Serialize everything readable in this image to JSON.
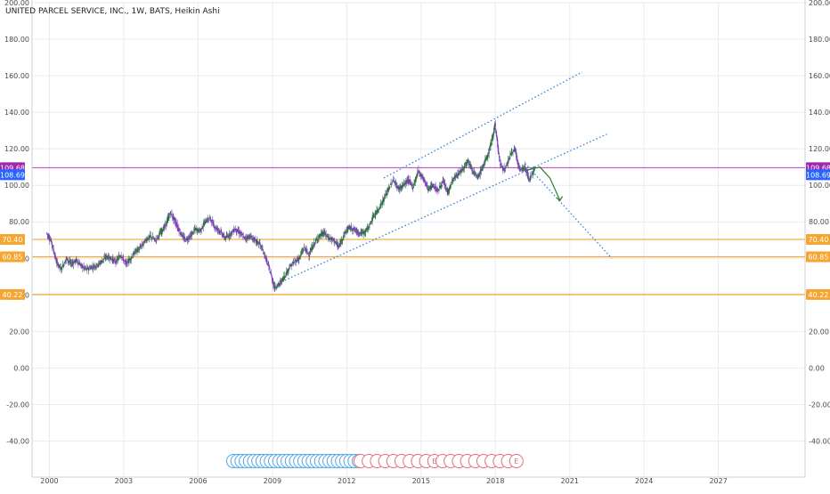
{
  "header": {
    "title": "UNITED PARCEL SERVICE, INC., 1W, BATS, Heikin Ashi"
  },
  "colors": {
    "grid": "#e6ecf1",
    "axis_text": "#4a4a4a",
    "candle_up": "#2e6e44",
    "candle_down": "#7a3fb8",
    "price_line": "#c23ac6",
    "price_tag": "#9c27b0",
    "last_tag": "#2962ff",
    "support": "#f7a531",
    "trend": "#2f7fd8",
    "forecast": "#2e7d32",
    "div_marker": "#4aa3e8",
    "earn_marker": "#e06b78"
  },
  "chart_data": {
    "type": "candlestick",
    "title": "UNITED PARCEL SERVICE, INC., 1W, BATS, Heikin Ashi",
    "xlabel": "",
    "ylabel": "",
    "x_ticks": [
      "2000",
      "2003",
      "2006",
      "2009",
      "2012",
      "2015",
      "2018",
      "2021",
      "2024",
      "2027"
    ],
    "y_ticks": [
      "200.00",
      "180.00",
      "160.00",
      "140.00",
      "120.00",
      "100.00",
      "80.00",
      "60.00",
      "40.00",
      "20.00",
      "0.00",
      "-20.00",
      "-40.00"
    ],
    "ylim": [
      -50,
      200
    ],
    "xlim": [
      1999.3,
      2030.5
    ],
    "grid": true,
    "price_series": [
      [
        1999.9,
        74
      ],
      [
        2000.1,
        69
      ],
      [
        2000.3,
        58
      ],
      [
        2000.5,
        54
      ],
      [
        2000.7,
        60
      ],
      [
        2000.9,
        57
      ],
      [
        2001.1,
        59
      ],
      [
        2001.3,
        56
      ],
      [
        2001.5,
        54
      ],
      [
        2001.7,
        55
      ],
      [
        2001.9,
        56
      ],
      [
        2002.1,
        58
      ],
      [
        2002.3,
        61
      ],
      [
        2002.5,
        60
      ],
      [
        2002.7,
        58
      ],
      [
        2002.9,
        62
      ],
      [
        2003.1,
        57
      ],
      [
        2003.3,
        60
      ],
      [
        2003.5,
        64
      ],
      [
        2003.7,
        66
      ],
      [
        2003.9,
        70
      ],
      [
        2004.1,
        72
      ],
      [
        2004.3,
        70
      ],
      [
        2004.5,
        74
      ],
      [
        2004.7,
        78
      ],
      [
        2004.9,
        85
      ],
      [
        2005.1,
        80
      ],
      [
        2005.3,
        74
      ],
      [
        2005.5,
        70
      ],
      [
        2005.7,
        72
      ],
      [
        2005.9,
        76
      ],
      [
        2006.1,
        75
      ],
      [
        2006.3,
        80
      ],
      [
        2006.5,
        82
      ],
      [
        2006.7,
        77
      ],
      [
        2006.9,
        75
      ],
      [
        2007.1,
        71
      ],
      [
        2007.3,
        73
      ],
      [
        2007.5,
        76
      ],
      [
        2007.7,
        74
      ],
      [
        2007.9,
        71
      ],
      [
        2008.1,
        72
      ],
      [
        2008.3,
        70
      ],
      [
        2008.5,
        68
      ],
      [
        2008.7,
        62
      ],
      [
        2008.9,
        54
      ],
      [
        2009.1,
        44
      ],
      [
        2009.3,
        46
      ],
      [
        2009.5,
        50
      ],
      [
        2009.7,
        55
      ],
      [
        2009.9,
        58
      ],
      [
        2010.1,
        60
      ],
      [
        2010.3,
        66
      ],
      [
        2010.5,
        62
      ],
      [
        2010.7,
        68
      ],
      [
        2010.9,
        72
      ],
      [
        2011.1,
        74
      ],
      [
        2011.3,
        71
      ],
      [
        2011.5,
        70
      ],
      [
        2011.7,
        66
      ],
      [
        2011.9,
        73
      ],
      [
        2012.1,
        77
      ],
      [
        2012.3,
        76
      ],
      [
        2012.5,
        74
      ],
      [
        2012.7,
        74
      ],
      [
        2012.9,
        77
      ],
      [
        2013.1,
        83
      ],
      [
        2013.3,
        87
      ],
      [
        2013.5,
        92
      ],
      [
        2013.7,
        98
      ],
      [
        2013.9,
        103
      ],
      [
        2014.1,
        98
      ],
      [
        2014.3,
        100
      ],
      [
        2014.5,
        103
      ],
      [
        2014.7,
        99
      ],
      [
        2014.9,
        108
      ],
      [
        2015.1,
        104
      ],
      [
        2015.3,
        98
      ],
      [
        2015.5,
        100
      ],
      [
        2015.7,
        97
      ],
      [
        2015.9,
        102
      ],
      [
        2016.1,
        96
      ],
      [
        2016.3,
        103
      ],
      [
        2016.5,
        106
      ],
      [
        2016.7,
        109
      ],
      [
        2016.9,
        114
      ],
      [
        2017.1,
        108
      ],
      [
        2017.3,
        104
      ],
      [
        2017.5,
        110
      ],
      [
        2017.7,
        116
      ],
      [
        2017.9,
        126
      ],
      [
        2018.0,
        134
      ],
      [
        2018.2,
        112
      ],
      [
        2018.4,
        108
      ],
      [
        2018.6,
        116
      ],
      [
        2018.8,
        120
      ],
      [
        2019.0,
        108
      ],
      [
        2019.2,
        110
      ],
      [
        2019.4,
        103
      ],
      [
        2019.6,
        109.68
      ]
    ],
    "horizontal_levels": [
      {
        "label": "109.68",
        "value": 109.68,
        "kind": "price"
      },
      {
        "label": "70.40",
        "value": 70.4,
        "kind": "support"
      },
      {
        "label": "60.85",
        "value": 60.85,
        "kind": "support"
      },
      {
        "label": "40.22",
        "value": 40.22,
        "kind": "support"
      }
    ],
    "last_value": {
      "label": "108.69",
      "value": 108.69
    },
    "trend_lines": [
      {
        "name": "channel-upper",
        "points": [
          [
            2013.5,
            104
          ],
          [
            2021.5,
            162
          ]
        ]
      },
      {
        "name": "channel-lower",
        "points": [
          [
            2009.5,
            48
          ],
          [
            2022.5,
            128
          ]
        ]
      },
      {
        "name": "projection",
        "points": [
          [
            2019.2,
            112
          ],
          [
            2022.7,
            60
          ]
        ]
      }
    ],
    "forecast_path": [
      [
        2019.2,
        108
      ],
      [
        2019.8,
        110
      ],
      [
        2020.2,
        104
      ],
      [
        2020.4,
        98
      ],
      [
        2020.6,
        92
      ]
    ],
    "event_markers": {
      "dividend_count": 31,
      "earnings_count": 20,
      "earnings_label": "E"
    }
  }
}
